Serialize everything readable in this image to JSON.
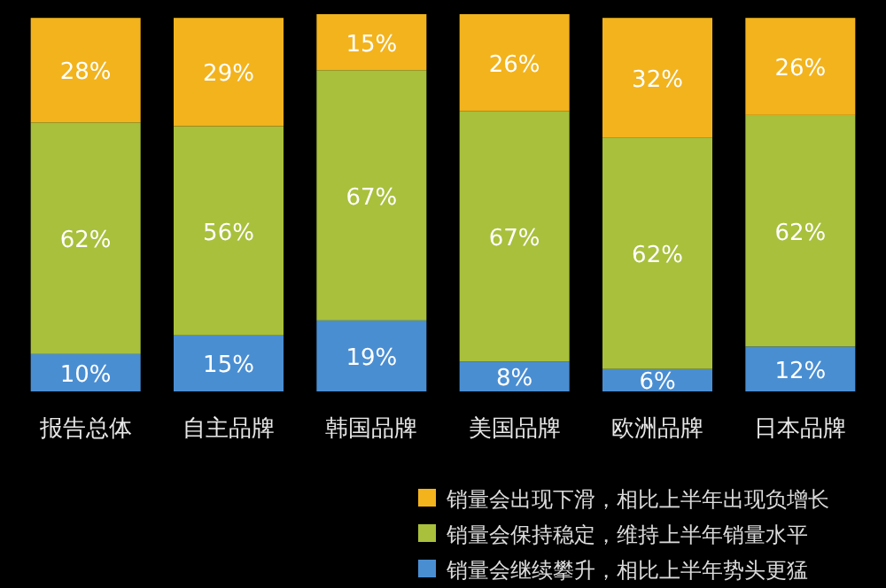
{
  "chart_data": {
    "type": "bar",
    "stacked": true,
    "legend": "bottom",
    "categories": [
      "报告总体",
      "自主品牌",
      "韩国品牌",
      "美国品牌",
      "欧洲品牌",
      "日本品牌"
    ],
    "series": [
      {
        "name": "销量会继续攀升，相比上半年势头更猛",
        "color": "#4a8ed2",
        "values": [
          10,
          15,
          19,
          8,
          6,
          12
        ],
        "value_labels": [
          "10%",
          "15%",
          "19%",
          "8%",
          "6%",
          "12%"
        ]
      },
      {
        "name": "销量会保持稳定，维持上半年销量水平",
        "color": "#a8c03c",
        "values": [
          62,
          56,
          67,
          67,
          62,
          62
        ],
        "value_labels": [
          "62%",
          "56%",
          "67%",
          "67%",
          "62%",
          "62%"
        ]
      },
      {
        "name": "销量会出现下滑，相比上半年出现负增长",
        "color": "#f2b31d",
        "values": [
          28,
          29,
          15,
          26,
          32,
          26
        ],
        "value_labels": [
          "28%",
          "29%",
          "15%",
          "26%",
          "32%",
          "26%"
        ]
      }
    ]
  }
}
